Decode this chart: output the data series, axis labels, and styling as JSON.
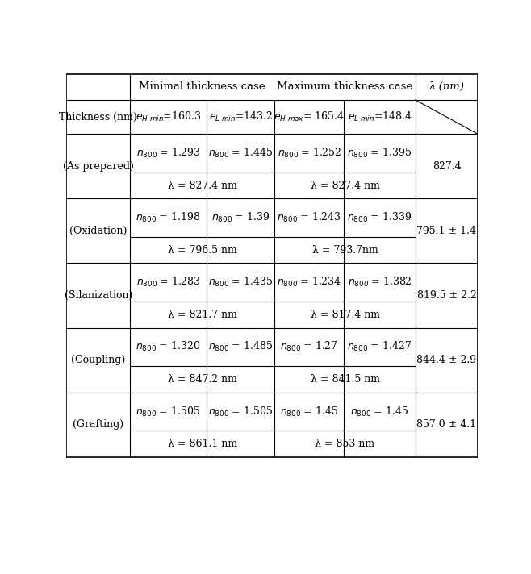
{
  "rows": [
    {
      "label": "(As prepared)",
      "n_vals": [
        "1.293",
        "1.445",
        "1.252",
        "1.395"
      ],
      "lambda_min": "λ = 827.4 nm",
      "lambda_max": "λ = 827.4 nm",
      "lambda_val": "827.4"
    },
    {
      "label": "(Oxidation)",
      "n_vals": [
        "1.198",
        "1.39",
        "1.243",
        "1.339"
      ],
      "lambda_min": "λ = 796.5 nm",
      "lambda_max": "λ = 793.7nm",
      "lambda_val": "795.1 ± 1.4"
    },
    {
      "label": "(Silanization)",
      "n_vals": [
        "1.283",
        "1.435",
        "1.234",
        "1.382"
      ],
      "lambda_min": "λ = 821.7 nm",
      "lambda_max": "λ = 817.4 nm",
      "lambda_val": "819.5 ± 2.2"
    },
    {
      "label": "(Coupling)",
      "n_vals": [
        "1.320",
        "1.485",
        "1.27",
        "1.427"
      ],
      "lambda_min": "λ = 847.2 nm",
      "lambda_max": "λ = 841.5 nm",
      "lambda_val": "844.4 ± 2.9"
    },
    {
      "label": "(Grafting)",
      "n_vals": [
        "1.505",
        "1.505",
        "1.45",
        "1.45"
      ],
      "lambda_min": "λ = 861.1 nm",
      "lambda_max": "λ = 853 nm",
      "lambda_val": "857.0 ± 4.1"
    }
  ],
  "thickness_vals": [
    "e_H_min=160.3",
    "e_L_min=143.2",
    "e_H_max= 165.4",
    "e_L_min=148.4"
  ],
  "header1_min": "Minimal thickness case",
  "header1_max": "Maximum thickness case",
  "header1_lam": "λ (nm)",
  "header2_label": "Thickness (nm)",
  "background_color": "#ffffff",
  "line_color": "#000000",
  "text_color": "#000000",
  "font_size": 9.0,
  "header_font_size": 9.5
}
